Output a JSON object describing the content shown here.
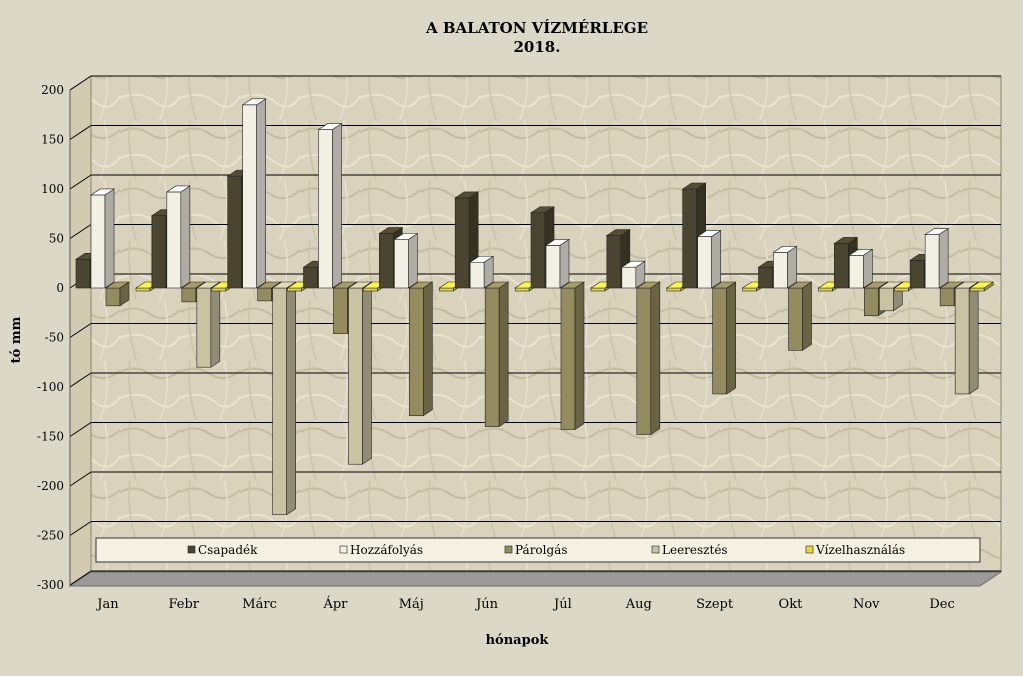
{
  "chart_data": {
    "type": "bar",
    "title": "A BALATON VÍZMÉRLEGE",
    "subtitle": "2018.",
    "xlabel": "hónapok",
    "ylabel": "tó mm",
    "ylim": [
      -300,
      200
    ],
    "yticks": [
      200,
      150,
      100,
      50,
      0,
      -50,
      -100,
      -150,
      -200,
      -250,
      -300
    ],
    "grid": true,
    "legend_position": "bottom-inside",
    "categories": [
      "Jan",
      "Febr",
      "Márc",
      "Ápr",
      "Máj",
      "Jún",
      "Júl",
      "Aug",
      "Szept",
      "Okt",
      "Nov",
      "Dec"
    ],
    "series": [
      {
        "name": "Csapadék",
        "color": "#4a4530",
        "values": [
          29,
          73,
          113,
          21,
          55,
          91,
          76,
          53,
          100,
          21,
          45,
          28
        ]
      },
      {
        "name": "Hozzáfolyás",
        "color": "#f2efe4",
        "values": [
          94,
          97,
          185,
          160,
          49,
          26,
          43,
          21,
          52,
          36,
          33,
          54
        ]
      },
      {
        "name": "Párolgás",
        "color": "#948b5e",
        "values": [
          -18,
          -14,
          -13,
          -46,
          -129,
          -140,
          -143,
          -148,
          -107,
          -63,
          -28,
          -18
        ]
      },
      {
        "name": "Leeresztés",
        "color": "#c9c3a2",
        "values": [
          0,
          -80,
          -229,
          -178,
          0,
          0,
          0,
          0,
          0,
          0,
          -23,
          -107
        ]
      },
      {
        "name": "Vízelhasználás",
        "color": "#e6d84a",
        "values": [
          -3,
          -3,
          -3,
          -3,
          -3,
          -3,
          -3,
          -3,
          -3,
          -3,
          -3,
          -3
        ]
      }
    ]
  }
}
